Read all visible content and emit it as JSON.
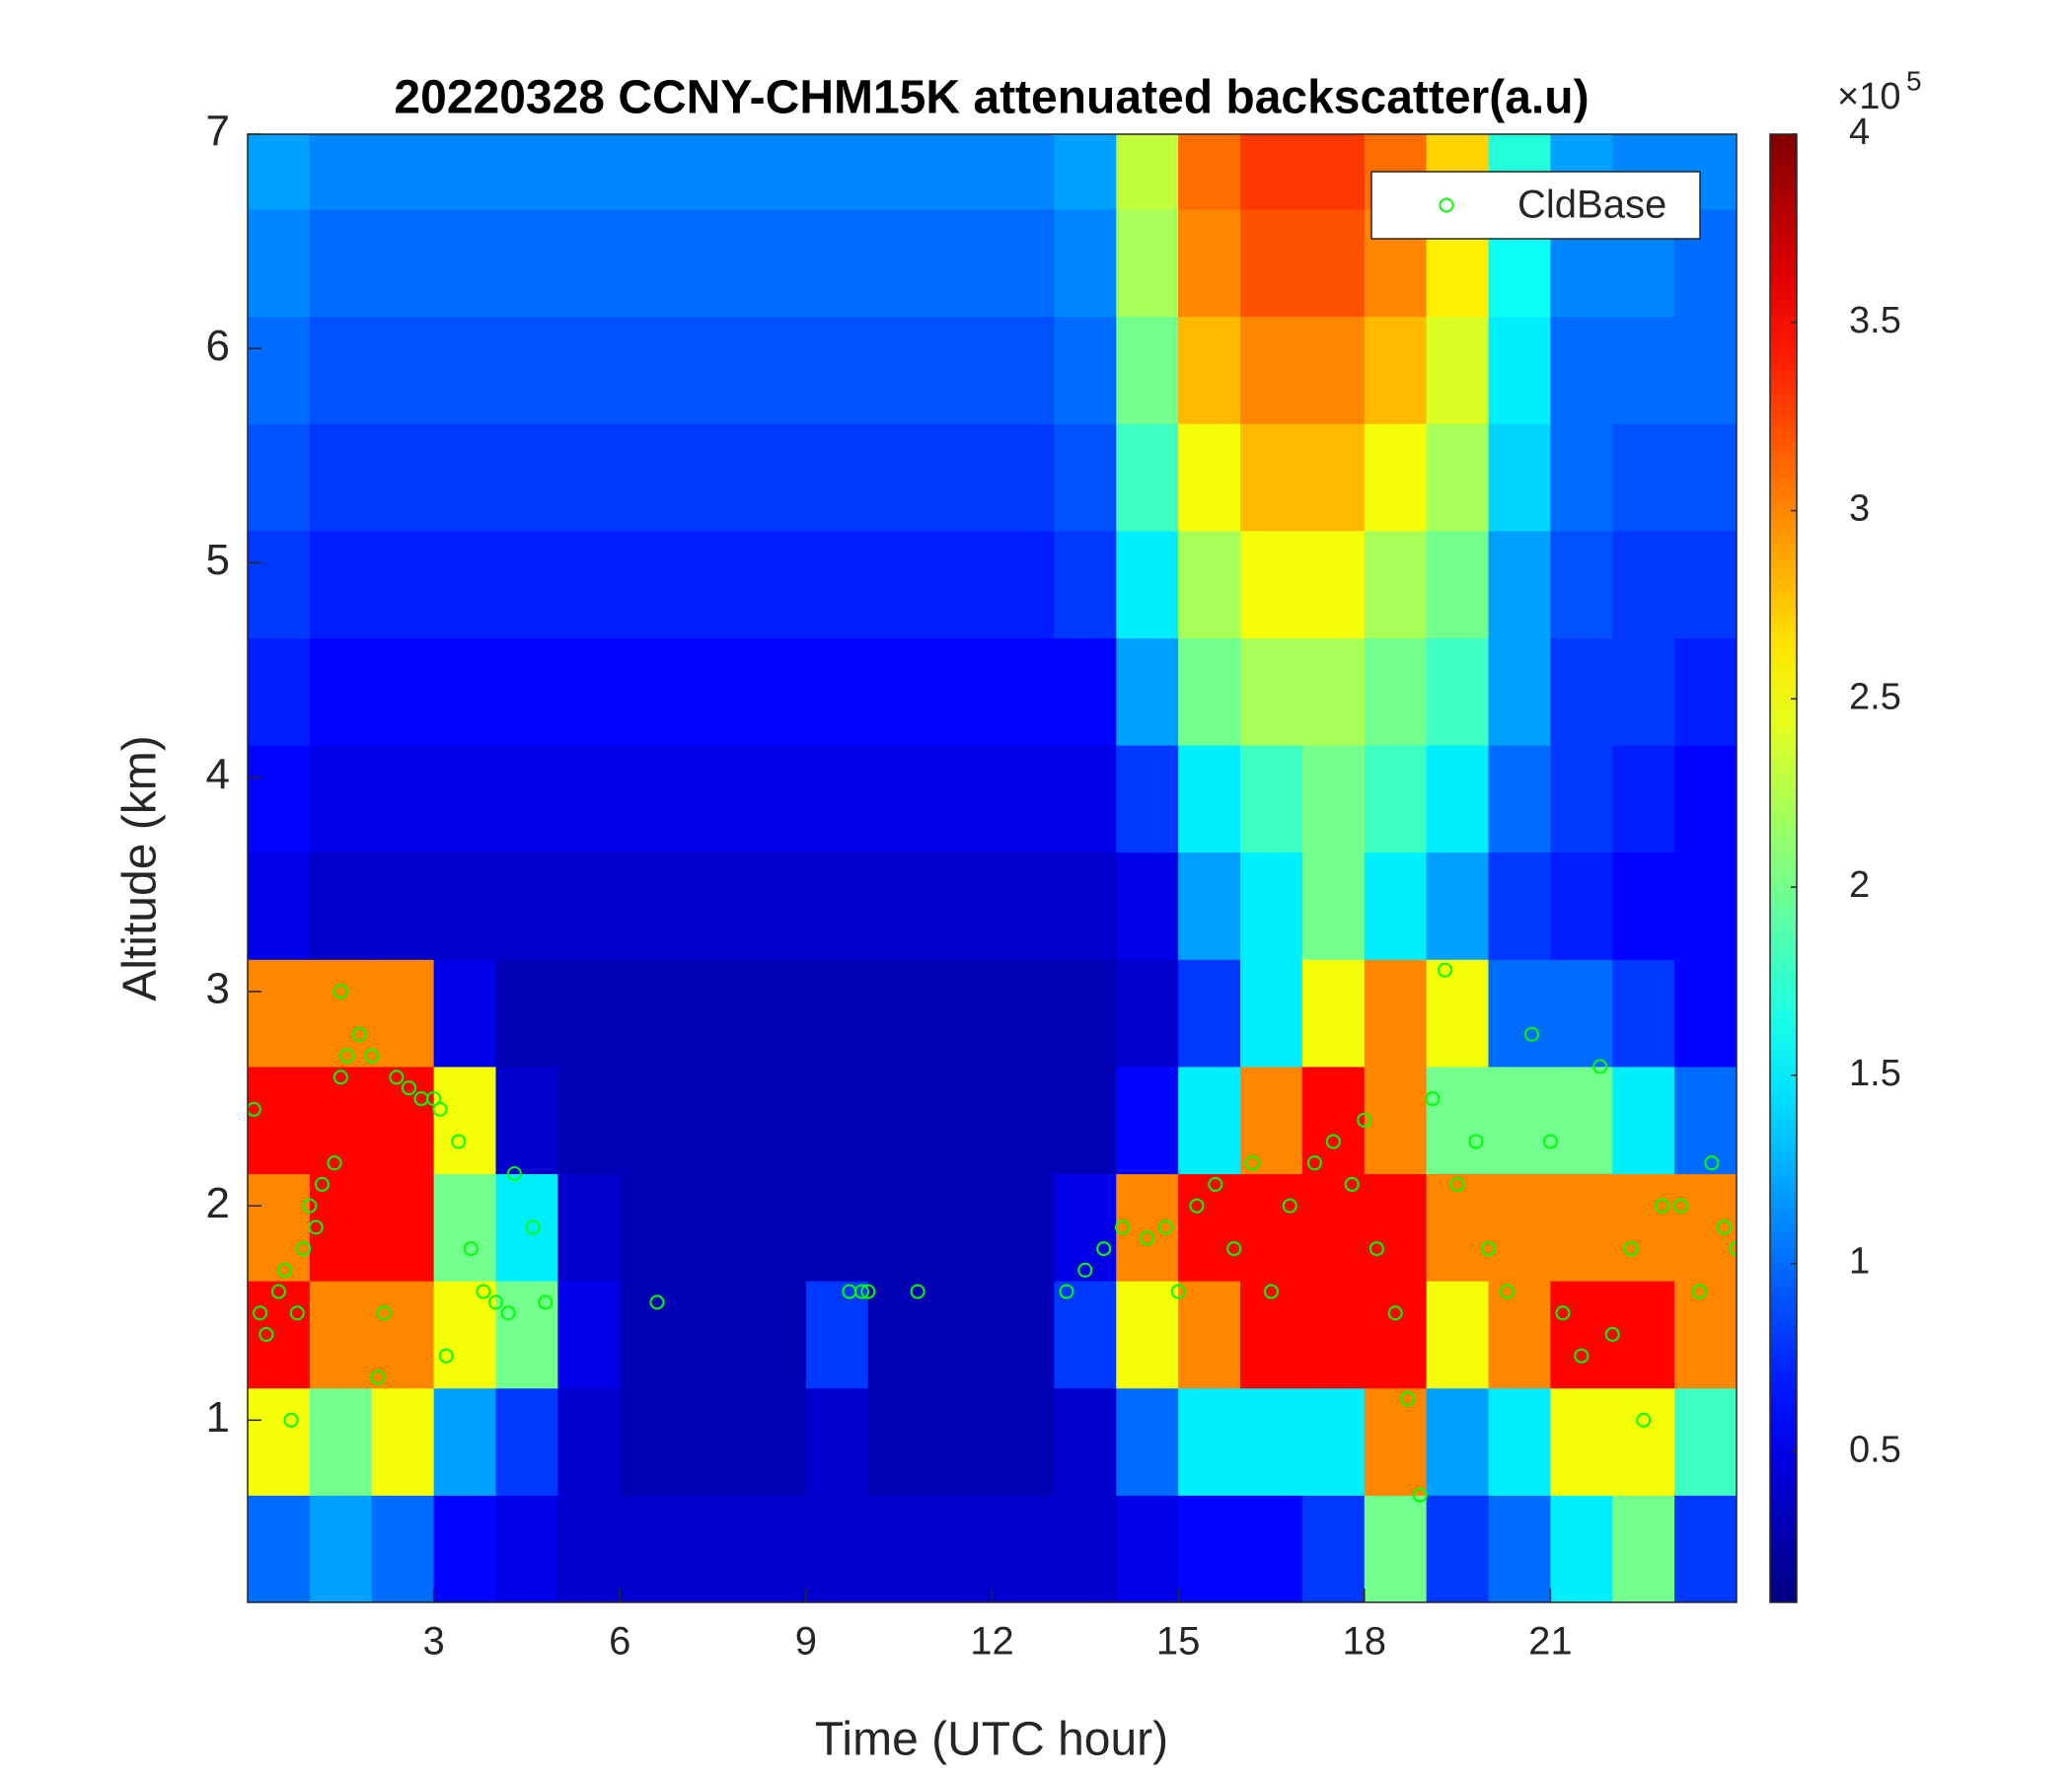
{
  "chart_data": {
    "type": "heatmap",
    "title": "20220328 CCNY-CHM15K attenuated backscatter(a.u)",
    "xlabel": "Time (UTC hour)",
    "ylabel": "Altitude (km)",
    "xlim": [
      0,
      24
    ],
    "ylim": [
      0.15,
      7
    ],
    "xticks": [
      3,
      6,
      9,
      12,
      15,
      18,
      21
    ],
    "yticks": [
      1,
      2,
      3,
      4,
      5,
      6,
      7
    ],
    "colormap": "jet",
    "clim": [
      0.1,
      4
    ],
    "colorbar_ticks": [
      0.5,
      1,
      1.5,
      2,
      2.5,
      3,
      3.5,
      4
    ],
    "colorbar_multiplier": "×10",
    "colorbar_exponent": "5",
    "legend": "northeast",
    "x": [
      0.5,
      1.5,
      2.5,
      3.5,
      4.5,
      5.5,
      6.5,
      7.5,
      8.5,
      9.5,
      10.5,
      11.5,
      12.5,
      13.5,
      14.5,
      15.5,
      16.5,
      17.5,
      18.5,
      19.5,
      20.5,
      21.5,
      22.5,
      23.5
    ],
    "y": [
      0.4,
      0.9,
      1.4,
      1.9,
      2.4,
      2.9,
      3.4,
      3.9,
      4.4,
      4.9,
      5.4,
      5.9,
      6.4,
      6.9
    ],
    "z": [
      [
        1.0,
        1.2,
        1.0,
        0.6,
        0.5,
        0.4,
        0.4,
        0.4,
        0.4,
        0.4,
        0.4,
        0.4,
        0.4,
        0.4,
        0.5,
        0.6,
        0.6,
        0.8,
        2.0,
        0.8,
        1.0,
        1.5,
        2.0,
        0.8
      ],
      [
        2.5,
        2.0,
        2.5,
        1.2,
        0.8,
        0.4,
        0.3,
        0.3,
        0.3,
        0.4,
        0.3,
        0.3,
        0.3,
        0.4,
        1.0,
        1.5,
        1.5,
        1.5,
        3.0,
        1.2,
        1.5,
        2.5,
        2.5,
        1.8
      ],
      [
        3.5,
        3.0,
        3.0,
        2.5,
        2.0,
        0.5,
        0.3,
        0.3,
        0.3,
        0.8,
        0.3,
        0.3,
        0.3,
        0.8,
        2.5,
        3.0,
        3.5,
        3.5,
        3.5,
        2.5,
        3.0,
        3.5,
        3.5,
        3.0
      ],
      [
        3.0,
        3.5,
        3.5,
        2.0,
        1.5,
        0.4,
        0.3,
        0.3,
        0.3,
        0.3,
        0.3,
        0.3,
        0.3,
        0.5,
        3.0,
        3.5,
        3.5,
        3.5,
        3.5,
        3.0,
        3.0,
        3.0,
        3.0,
        3.0
      ],
      [
        3.5,
        3.5,
        3.5,
        2.5,
        0.4,
        0.3,
        0.3,
        0.3,
        0.3,
        0.3,
        0.3,
        0.3,
        0.3,
        0.3,
        0.6,
        1.5,
        3.0,
        3.5,
        3.0,
        2.0,
        2.0,
        2.0,
        1.5,
        1.0
      ],
      [
        3.0,
        3.0,
        3.0,
        0.5,
        0.3,
        0.3,
        0.3,
        0.3,
        0.3,
        0.3,
        0.3,
        0.3,
        0.3,
        0.3,
        0.4,
        0.8,
        1.5,
        2.5,
        3.0,
        2.5,
        1.0,
        1.0,
        0.8,
        0.6
      ],
      [
        0.5,
        0.4,
        0.4,
        0.4,
        0.4,
        0.4,
        0.4,
        0.4,
        0.4,
        0.4,
        0.4,
        0.4,
        0.4,
        0.4,
        0.5,
        1.2,
        1.5,
        2.0,
        1.5,
        1.2,
        0.8,
        0.7,
        0.6,
        0.6
      ],
      [
        0.6,
        0.5,
        0.5,
        0.5,
        0.5,
        0.5,
        0.5,
        0.5,
        0.5,
        0.5,
        0.5,
        0.5,
        0.5,
        0.5,
        0.8,
        1.5,
        1.8,
        2.0,
        1.8,
        1.5,
        1.0,
        0.8,
        0.7,
        0.6
      ],
      [
        0.7,
        0.6,
        0.6,
        0.6,
        0.6,
        0.6,
        0.6,
        0.6,
        0.6,
        0.6,
        0.6,
        0.6,
        0.6,
        0.6,
        1.2,
        2.0,
        2.2,
        2.2,
        2.0,
        1.8,
        1.2,
        0.8,
        0.8,
        0.7
      ],
      [
        0.8,
        0.7,
        0.7,
        0.7,
        0.7,
        0.7,
        0.7,
        0.7,
        0.7,
        0.7,
        0.7,
        0.7,
        0.7,
        0.8,
        1.5,
        2.2,
        2.5,
        2.5,
        2.2,
        2.0,
        1.2,
        0.9,
        0.8,
        0.8
      ],
      [
        0.9,
        0.8,
        0.8,
        0.8,
        0.8,
        0.8,
        0.8,
        0.8,
        0.8,
        0.8,
        0.8,
        0.8,
        0.8,
        0.9,
        1.8,
        2.5,
        2.8,
        2.8,
        2.5,
        2.2,
        1.4,
        1.0,
        0.9,
        0.9
      ],
      [
        1.0,
        0.9,
        0.9,
        0.9,
        0.9,
        0.9,
        0.9,
        0.9,
        0.9,
        0.9,
        0.9,
        0.9,
        0.9,
        1.0,
        2.0,
        2.8,
        3.0,
        3.0,
        2.8,
        2.4,
        1.5,
        1.0,
        1.0,
        1.0
      ],
      [
        1.1,
        1.0,
        1.0,
        1.0,
        1.0,
        1.0,
        1.0,
        1.0,
        1.0,
        1.0,
        1.0,
        1.0,
        1.0,
        1.1,
        2.2,
        3.0,
        3.2,
        3.2,
        3.0,
        2.6,
        1.6,
        1.1,
        1.1,
        1.0
      ],
      [
        1.2,
        1.1,
        1.1,
        1.1,
        1.1,
        1.1,
        1.1,
        1.1,
        1.1,
        1.1,
        1.1,
        1.1,
        1.1,
        1.2,
        2.3,
        3.1,
        3.3,
        3.3,
        3.1,
        2.7,
        1.7,
        1.2,
        1.1,
        1.1
      ]
    ],
    "series": [
      {
        "name": "CldBase",
        "type": "scatter",
        "color": "#00ff00",
        "x": [
          0.1,
          0.2,
          0.3,
          0.5,
          0.6,
          0.7,
          0.8,
          0.9,
          1.0,
          1.1,
          1.2,
          1.4,
          1.5,
          1.5,
          1.6,
          1.8,
          2.0,
          2.1,
          2.2,
          2.4,
          2.6,
          2.8,
          3.0,
          3.1,
          3.2,
          3.4,
          3.6,
          3.8,
          4.0,
          4.2,
          4.3,
          4.6,
          4.8,
          6.6,
          9.7,
          9.9,
          10.0,
          10.8,
          13.2,
          13.5,
          13.8,
          14.1,
          14.5,
          14.8,
          15.0,
          15.3,
          15.6,
          15.9,
          16.2,
          16.5,
          16.8,
          17.2,
          17.5,
          17.8,
          18.0,
          18.2,
          18.5,
          18.7,
          18.9,
          19.1,
          19.3,
          19.5,
          19.8,
          20.0,
          20.3,
          20.7,
          21.0,
          21.2,
          21.5,
          21.8,
          22.0,
          22.3,
          22.5,
          22.8,
          23.1,
          23.4,
          23.6,
          23.8,
          24.0
        ],
        "y": [
          2.45,
          1.5,
          1.4,
          1.6,
          1.7,
          1.0,
          1.5,
          1.8,
          2.0,
          1.9,
          2.1,
          2.2,
          2.6,
          3.0,
          2.7,
          2.8,
          2.7,
          1.2,
          1.5,
          2.6,
          2.55,
          2.5,
          2.5,
          2.45,
          1.3,
          2.3,
          1.8,
          1.6,
          1.55,
          1.5,
          2.15,
          1.9,
          1.55,
          1.55,
          1.6,
          1.6,
          1.6,
          1.6,
          1.6,
          1.7,
          1.8,
          1.9,
          1.85,
          1.9,
          1.6,
          2.0,
          2.1,
          1.8,
          2.2,
          1.6,
          2.0,
          2.2,
          2.3,
          2.1,
          2.4,
          1.8,
          1.5,
          1.1,
          0.65,
          2.5,
          3.1,
          2.1,
          2.3,
          1.8,
          1.6,
          2.8,
          2.3,
          1.5,
          1.3,
          2.65,
          1.4,
          1.8,
          1.0,
          2.0,
          2.0,
          1.6,
          2.2,
          1.9,
          1.8
        ]
      }
    ]
  }
}
